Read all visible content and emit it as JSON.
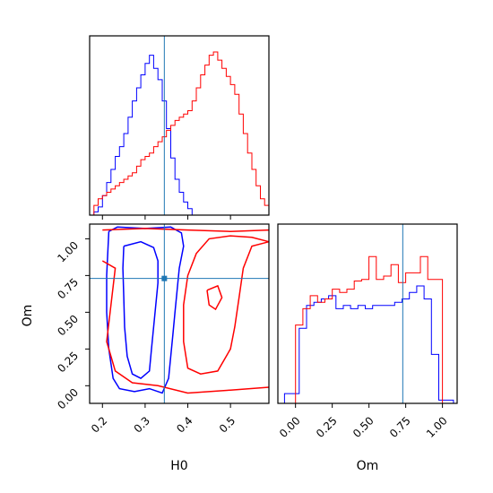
{
  "chart_data": [
    {
      "type": "histogram",
      "panel": "H0 marginal",
      "x_range": [
        0.17,
        0.59
      ],
      "truth_value": 0.345,
      "series": [
        {
          "color": "#0000ff",
          "bin_edges": [
            0.17,
            0.18,
            0.19,
            0.2,
            0.21,
            0.22,
            0.23,
            0.24,
            0.25,
            0.26,
            0.27,
            0.28,
            0.29,
            0.3,
            0.31,
            0.32,
            0.33,
            0.34,
            0.35,
            0.36,
            0.37,
            0.38,
            0.39,
            0.4,
            0.41
          ],
          "counts": [
            0.0,
            0.02,
            0.05,
            0.12,
            0.2,
            0.28,
            0.36,
            0.42,
            0.5,
            0.6,
            0.7,
            0.78,
            0.86,
            0.93,
            0.98,
            0.9,
            0.83,
            0.7,
            0.53,
            0.35,
            0.22,
            0.14,
            0.08,
            0.04
          ]
        },
        {
          "color": "#ff0000",
          "bin_edges": [
            0.17,
            0.18,
            0.19,
            0.2,
            0.21,
            0.22,
            0.23,
            0.24,
            0.25,
            0.26,
            0.27,
            0.28,
            0.29,
            0.3,
            0.31,
            0.32,
            0.33,
            0.34,
            0.35,
            0.36,
            0.37,
            0.38,
            0.39,
            0.4,
            0.41,
            0.42,
            0.43,
            0.44,
            0.45,
            0.46,
            0.47,
            0.48,
            0.49,
            0.5,
            0.51,
            0.52,
            0.53,
            0.54,
            0.55,
            0.56,
            0.57,
            0.58,
            0.59
          ],
          "counts": [
            0.0,
            0.06,
            0.1,
            0.12,
            0.14,
            0.16,
            0.18,
            0.2,
            0.22,
            0.24,
            0.26,
            0.3,
            0.34,
            0.36,
            0.38,
            0.42,
            0.45,
            0.48,
            0.52,
            0.55,
            0.58,
            0.6,
            0.62,
            0.64,
            0.7,
            0.78,
            0.86,
            0.92,
            0.98,
            1.0,
            0.95,
            0.9,
            0.85,
            0.8,
            0.74,
            0.62,
            0.5,
            0.38,
            0.28,
            0.18,
            0.1,
            0.06
          ]
        }
      ]
    },
    {
      "type": "contour",
      "panel": "H0 vs Om",
      "xlabel": "H0",
      "ylabel": "Om",
      "x_range": [
        0.17,
        0.59
      ],
      "y_range": [
        -0.12,
        1.1
      ],
      "x_ticks": [
        "0.2",
        "0.3",
        "0.4",
        "0.5"
      ],
      "x_tick_values": [
        0.2,
        0.3,
        0.4,
        0.5
      ],
      "y_ticks": [
        "0.00",
        "0.25",
        "0.50",
        "0.75",
        "1.00"
      ],
      "y_tick_values": [
        0.0,
        0.25,
        0.5,
        0.75,
        1.0
      ],
      "truth_point": [
        0.345,
        0.73
      ],
      "series": [
        {
          "color": "#0000ff",
          "contours": [
            [
              [
                0.215,
                1.05
              ],
              [
                0.235,
                1.08
              ],
              [
                0.3,
                1.07
              ],
              [
                0.36,
                1.08
              ],
              [
                0.385,
                1.04
              ],
              [
                0.39,
                0.95
              ],
              [
                0.38,
                0.8
              ],
              [
                0.375,
                0.65
              ],
              [
                0.37,
                0.5
              ],
              [
                0.365,
                0.35
              ],
              [
                0.36,
                0.2
              ],
              [
                0.355,
                0.05
              ],
              [
                0.34,
                -0.05
              ],
              [
                0.31,
                -0.02
              ],
              [
                0.275,
                -0.04
              ],
              [
                0.24,
                -0.02
              ],
              [
                0.225,
                0.05
              ],
              [
                0.215,
                0.25
              ],
              [
                0.21,
                0.5
              ],
              [
                0.21,
                0.75
              ],
              [
                0.215,
                1.05
              ]
            ],
            [
              [
                0.25,
                0.95
              ],
              [
                0.29,
                0.98
              ],
              [
                0.32,
                0.94
              ],
              [
                0.33,
                0.85
              ],
              [
                0.33,
                0.7
              ],
              [
                0.325,
                0.55
              ],
              [
                0.32,
                0.4
              ],
              [
                0.315,
                0.25
              ],
              [
                0.31,
                0.1
              ],
              [
                0.29,
                0.05
              ],
              [
                0.27,
                0.08
              ],
              [
                0.258,
                0.2
              ],
              [
                0.252,
                0.4
              ],
              [
                0.25,
                0.6
              ],
              [
                0.248,
                0.8
              ],
              [
                0.25,
                0.95
              ]
            ]
          ]
        },
        {
          "color": "#ff0000",
          "contours": [
            [
              [
                0.2,
                1.06
              ],
              [
                0.3,
                1.07
              ],
              [
                0.4,
                1.06
              ],
              [
                0.5,
                1.05
              ],
              [
                0.59,
                1.06
              ]
            ],
            [
              [
                0.2,
                0.85
              ],
              [
                0.23,
                0.8
              ],
              [
                0.22,
                0.55
              ],
              [
                0.21,
                0.3
              ],
              [
                0.23,
                0.1
              ],
              [
                0.27,
                0.02
              ],
              [
                0.33,
                0.0
              ],
              [
                0.4,
                -0.05
              ],
              [
                0.5,
                -0.03
              ],
              [
                0.59,
                -0.01
              ]
            ],
            [
              [
                0.59,
                0.98
              ],
              [
                0.55,
                0.95
              ],
              [
                0.53,
                0.8
              ],
              [
                0.52,
                0.6
              ],
              [
                0.51,
                0.4
              ],
              [
                0.5,
                0.25
              ],
              [
                0.47,
                0.1
              ],
              [
                0.43,
                0.08
              ],
              [
                0.4,
                0.12
              ],
              [
                0.39,
                0.3
              ],
              [
                0.39,
                0.55
              ],
              [
                0.4,
                0.75
              ],
              [
                0.42,
                0.9
              ],
              [
                0.45,
                1.0
              ],
              [
                0.5,
                1.02
              ],
              [
                0.55,
                1.01
              ],
              [
                0.59,
                0.98
              ]
            ],
            [
              [
                0.445,
                0.65
              ],
              [
                0.47,
                0.68
              ],
              [
                0.48,
                0.6
              ],
              [
                0.465,
                0.52
              ],
              [
                0.45,
                0.55
              ],
              [
                0.445,
                0.65
              ]
            ]
          ]
        }
      ]
    },
    {
      "type": "histogram",
      "panel": "Om marginal",
      "xlabel": "Om",
      "x_range": [
        -0.12,
        1.1
      ],
      "x_ticks": [
        "0.00",
        "0.25",
        "0.50",
        "0.75",
        "1.00"
      ],
      "x_tick_values": [
        0.0,
        0.25,
        0.5,
        0.75,
        1.0
      ],
      "truth_value": 0.73,
      "series": [
        {
          "color": "#0000ff",
          "bin_edges": [
            -0.075,
            -0.025,
            0.025,
            0.075,
            0.125,
            0.175,
            0.225,
            0.275,
            0.325,
            0.375,
            0.425,
            0.475,
            0.525,
            0.575,
            0.625,
            0.675,
            0.725,
            0.775,
            0.825,
            0.875,
            0.925,
            0.975,
            1.025,
            1.075
          ],
          "counts": [
            0.06,
            0.06,
            0.46,
            0.6,
            0.62,
            0.64,
            0.66,
            0.58,
            0.6,
            0.58,
            0.6,
            0.58,
            0.6,
            0.6,
            0.6,
            0.62,
            0.64,
            0.68,
            0.72,
            0.64,
            0.3,
            0.02,
            0.02
          ]
        },
        {
          "color": "#ff0000",
          "bin_edges": [
            0.0,
            0.05,
            0.1,
            0.15,
            0.2,
            0.25,
            0.3,
            0.35,
            0.4,
            0.45,
            0.5,
            0.55,
            0.6,
            0.65,
            0.7,
            0.75,
            0.8,
            0.85,
            0.9,
            0.95,
            1.0
          ],
          "counts": [
            0.48,
            0.58,
            0.66,
            0.62,
            0.64,
            0.7,
            0.68,
            0.7,
            0.75,
            0.76,
            0.9,
            0.76,
            0.78,
            0.85,
            0.74,
            0.8,
            0.8,
            0.9,
            0.76,
            0.76
          ]
        }
      ]
    }
  ]
}
